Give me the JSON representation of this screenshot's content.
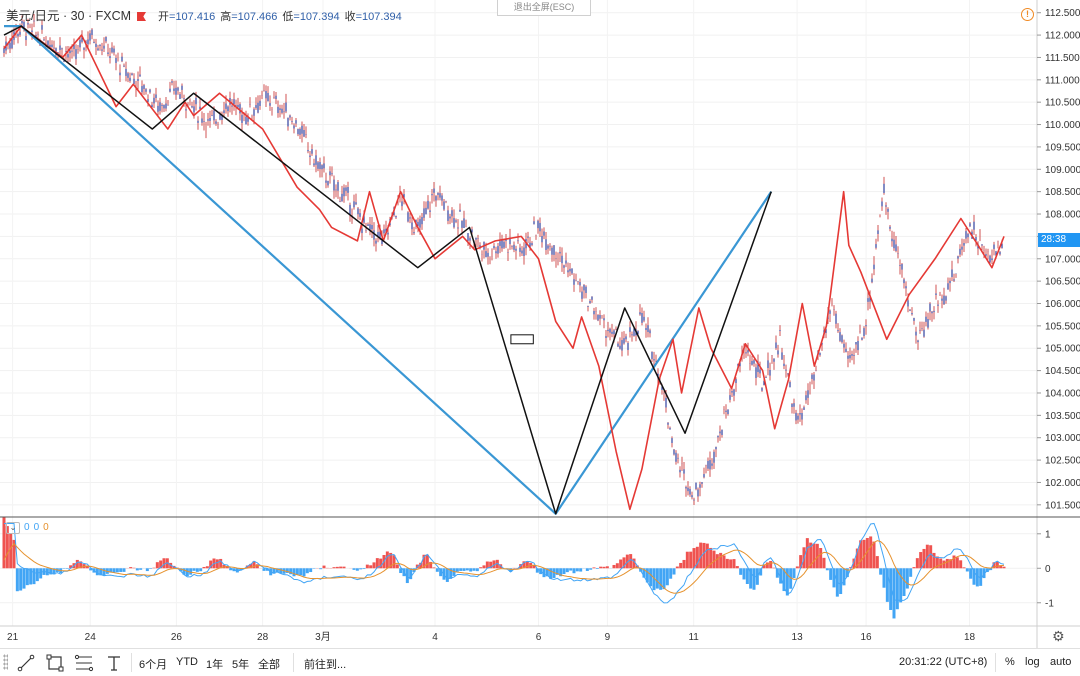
{
  "header": {
    "symbol": "美元/日元 · 30 · FXCM",
    "ohlc": [
      {
        "label": "开",
        "value": "=107.416"
      },
      {
        "label": "高",
        "value": "=107.466"
      },
      {
        "label": "低",
        "value": "=107.394"
      },
      {
        "label": "收",
        "value": "=107.394"
      }
    ],
    "exit_fullscreen": "退出全屏(ESC)",
    "warning_glyph": "!",
    "current_price_tag": "28:38"
  },
  "chart_data": [
    {
      "type": "candlestick",
      "title": "",
      "y_ticks": [
        "112.500",
        "112.000",
        "111.500",
        "111.000",
        "110.500",
        "110.000",
        "109.500",
        "109.000",
        "108.500",
        "108.000",
        "107.500",
        "107.000",
        "106.500",
        "106.000",
        "105.500",
        "105.000",
        "104.500",
        "104.000",
        "103.500",
        "103.000",
        "102.500",
        "102.000",
        "101.500"
      ],
      "ylim": [
        101.25,
        112.65
      ],
      "x_ticks": [
        "21",
        "24",
        "26",
        "28",
        "3月",
        "4",
        "6",
        "9",
        "11",
        "13",
        "16",
        "18"
      ],
      "x_tick_index": [
        0.5,
        5,
        10,
        15,
        18.5,
        25,
        31,
        35,
        40,
        46,
        50,
        56
      ],
      "x_range": [
        0,
        58
      ],
      "price_path": [
        [
          0,
          111.7
        ],
        [
          1,
          112.2
        ],
        [
          2,
          112.0
        ],
        [
          3,
          111.8
        ],
        [
          4,
          111.5
        ],
        [
          5,
          112.0
        ],
        [
          6,
          111.7
        ],
        [
          7,
          111.2
        ],
        [
          8,
          110.9
        ],
        [
          9,
          110.4
        ],
        [
          10,
          110.8
        ],
        [
          11,
          110.4
        ],
        [
          12,
          110.0
        ],
        [
          13,
          110.5
        ],
        [
          14,
          110.2
        ],
        [
          15,
          110.6
        ],
        [
          16,
          110.4
        ],
        [
          17,
          110.0
        ],
        [
          18,
          109.2
        ],
        [
          19,
          108.7
        ],
        [
          20,
          108.3
        ],
        [
          21,
          107.7
        ],
        [
          22,
          107.4
        ],
        [
          23,
          108.4
        ],
        [
          24,
          107.6
        ],
        [
          25,
          108.5
        ],
        [
          26,
          108.0
        ],
        [
          27,
          107.6
        ],
        [
          28,
          107.1
        ],
        [
          29,
          107.4
        ],
        [
          30,
          107.2
        ],
        [
          31,
          107.7
        ],
        [
          32,
          107.2
        ],
        [
          33,
          106.6
        ],
        [
          34,
          106.0
        ],
        [
          35,
          105.4
        ],
        [
          36,
          105.0
        ],
        [
          37,
          105.7
        ],
        [
          38,
          104.5
        ],
        [
          39,
          102.5
        ],
        [
          40,
          101.7
        ],
        [
          41,
          102.5
        ],
        [
          42,
          103.7
        ],
        [
          43,
          105.0
        ],
        [
          44,
          104.2
        ],
        [
          45,
          105.2
        ],
        [
          46,
          103.3
        ],
        [
          47,
          104.3
        ],
        [
          48,
          106.0
        ],
        [
          49,
          104.6
        ],
        [
          50,
          105.6
        ],
        [
          51,
          108.5
        ],
        [
          52,
          106.8
        ],
        [
          53,
          105.2
        ],
        [
          54,
          106.0
        ],
        [
          55,
          106.5
        ],
        [
          56,
          107.8
        ],
        [
          57,
          107.0
        ],
        [
          58,
          107.4
        ]
      ],
      "zigzag_small_red": [
        [
          0,
          111.7
        ],
        [
          1,
          112.2
        ],
        [
          3.4,
          111.5
        ],
        [
          4.5,
          112.0
        ],
        [
          6.5,
          110.4
        ],
        [
          7.5,
          110.9
        ],
        [
          9.5,
          109.9
        ],
        [
          10.5,
          110.5
        ],
        [
          11,
          110.2
        ],
        [
          12.5,
          110.7
        ],
        [
          15,
          109.9
        ],
        [
          17,
          108.6
        ],
        [
          18.3,
          108.1
        ],
        [
          19,
          107.7
        ],
        [
          20.5,
          107.4
        ],
        [
          21.2,
          108.5
        ],
        [
          22,
          107.4
        ],
        [
          23,
          108.5
        ],
        [
          24,
          107.7
        ],
        [
          25,
          107.0
        ],
        [
          26.6,
          107.5
        ],
        [
          27.3,
          107.2
        ],
        [
          28.5,
          107.4
        ],
        [
          30,
          107.5
        ],
        [
          31,
          107.0
        ],
        [
          32,
          105.6
        ],
        [
          33,
          105.0
        ],
        [
          33.5,
          105.7
        ],
        [
          34.5,
          104.6
        ],
        [
          35.5,
          102.7
        ],
        [
          36.3,
          101.4
        ],
        [
          37,
          102.3
        ],
        [
          38,
          104.3
        ],
        [
          38.8,
          105.2
        ],
        [
          39.3,
          104.0
        ],
        [
          40.3,
          105.9
        ],
        [
          41,
          105.0
        ],
        [
          42.2,
          104.1
        ],
        [
          43,
          105.1
        ],
        [
          44,
          104.5
        ],
        [
          44.7,
          103.2
        ],
        [
          45.5,
          104.3
        ],
        [
          46.3,
          106.0
        ],
        [
          47,
          104.6
        ],
        [
          47.7,
          105.5
        ],
        [
          48.7,
          108.5
        ],
        [
          49,
          107.3
        ],
        [
          49.7,
          106.7
        ],
        [
          51.2,
          105.2
        ],
        [
          52.5,
          106.2
        ],
        [
          54,
          107.0
        ],
        [
          55.5,
          107.9
        ],
        [
          56.5,
          107.3
        ],
        [
          57.3,
          106.8
        ],
        [
          58,
          107.5
        ]
      ],
      "zigzag_medium_black": [
        [
          0,
          112.0
        ],
        [
          1,
          112.2
        ],
        [
          8.6,
          109.9
        ],
        [
          11,
          110.7
        ],
        [
          24,
          106.8
        ],
        [
          27,
          107.7
        ],
        [
          32,
          101.3
        ],
        [
          36,
          105.9
        ],
        [
          39.5,
          103.1
        ],
        [
          44.5,
          108.5
        ]
      ],
      "zigzag_large_blue": [
        [
          0,
          112.2
        ],
        [
          1,
          112.2
        ],
        [
          32,
          101.3
        ],
        [
          44.5,
          108.5
        ]
      ],
      "pattern_box": {
        "x": [
          29.4,
          30.7
        ],
        "y": [
          105.3,
          105.1
        ]
      }
    },
    {
      "type": "line",
      "title": "",
      "indicator_legend": [
        "0",
        "0",
        "0"
      ],
      "y_ticks": [
        "1",
        "0",
        "-1"
      ],
      "ylim": [
        -1.5,
        1.4
      ],
      "series": [
        {
          "role": "histogram",
          "colors": [
            "#ef5350",
            "#42a5f5"
          ]
        },
        {
          "role": "macd",
          "color": "#42a5f5"
        },
        {
          "role": "signal",
          "color": "#e6922e"
        }
      ]
    }
  ],
  "toolbar": {
    "periods": [
      "6个月",
      "YTD",
      "1年",
      "5年",
      "全部"
    ],
    "goto": "前往到...",
    "clock": "20:31:22 (UTC+8)",
    "percent": "%",
    "log": "log",
    "auto": "auto"
  },
  "colors": {
    "candle": "#2f3e9e",
    "wick": "#c62828",
    "zigzag_red": "#e53935",
    "zigzag_black": "#111111",
    "zigzag_blue": "#3a97d4",
    "accent_tag": "#2196f3"
  }
}
